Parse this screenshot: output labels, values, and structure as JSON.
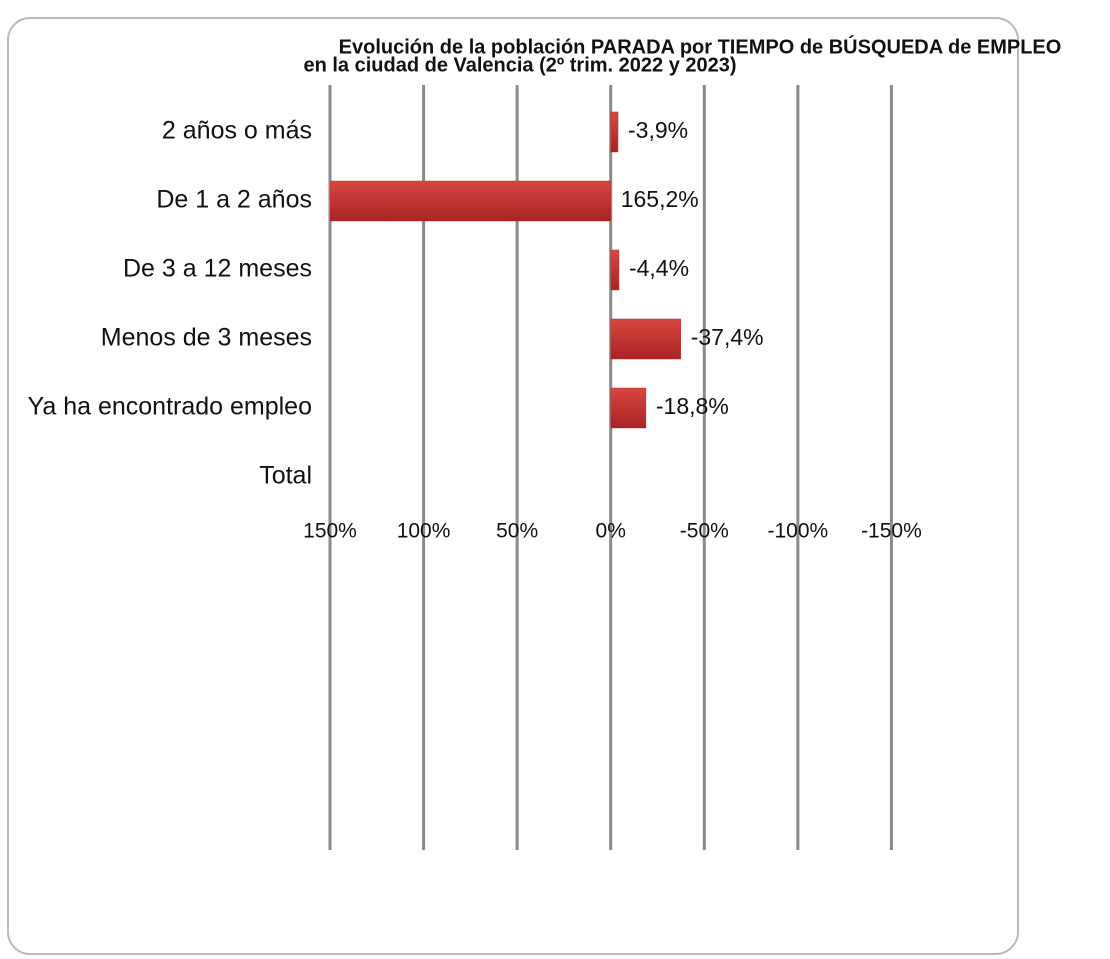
{
  "chart_data": {
    "type": "hbar",
    "title": "Evolución de la población PARADA por TIEMPO de BÚSQUEDA de EMPLEO",
    "subtitle": "en la ciudad de Valencia (2º trim. 2022 y 2023)",
    "categories": [
      "2 años o más",
      "De 1 a 2 años",
      "De 3 a 12 meses",
      "Menos de 3 meses",
      "Ya ha encontrado empleo",
      "Total"
    ],
    "values": [
      -3.9,
      165.2,
      -4.4,
      -37.4,
      -18.8,
      null
    ],
    "value_labels": [
      "-3,9%",
      "165,2%",
      "-4,4%",
      "-37,4%",
      "-18,8%",
      null
    ],
    "color": "#c0302f",
    "xlim": [
      150,
      -200
    ],
    "xticks": [
      {
        "value": 150,
        "label": "150%"
      },
      {
        "value": 100,
        "label": "100%"
      },
      {
        "value": 50,
        "label": "50%"
      },
      {
        "value": 0,
        "label": "0%"
      },
      {
        "value": -50,
        "label": "-50%"
      },
      {
        "value": -100,
        "label": "-100%"
      },
      {
        "value": -150,
        "label": "-150%"
      }
    ],
    "grid": true
  }
}
